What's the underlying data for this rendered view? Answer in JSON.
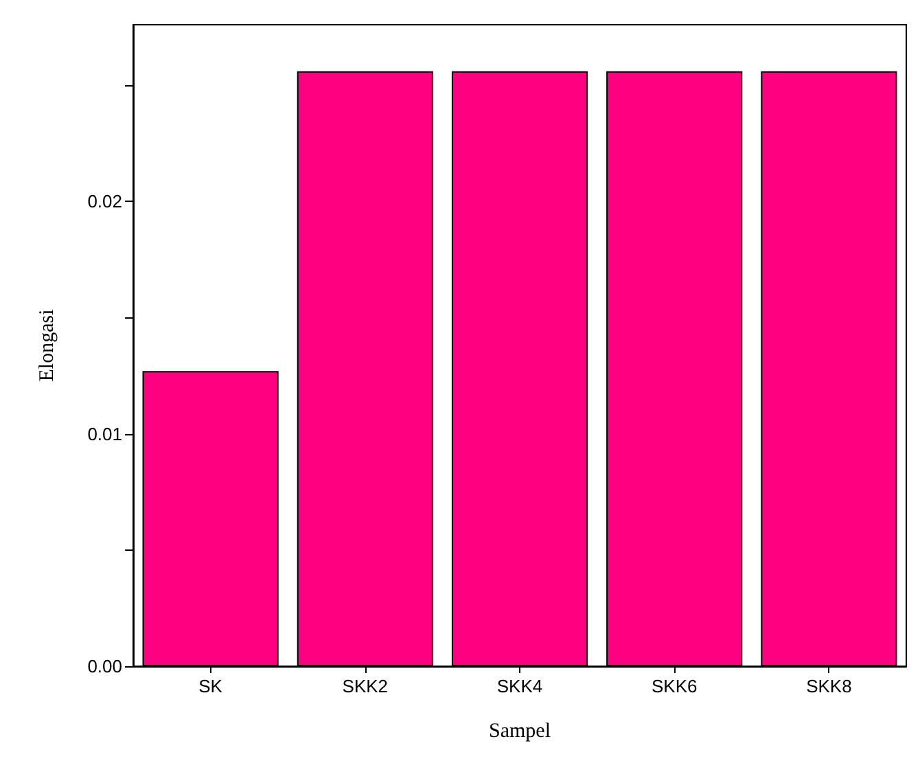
{
  "chart_data": {
    "type": "bar",
    "xlabel": "Sampel",
    "ylabel": "Elongasi",
    "categories": [
      "SK",
      "SKK2",
      "SKK4",
      "SKK6",
      "SKK8"
    ],
    "values": [
      0.0127,
      0.0256,
      0.0256,
      0.0256,
      0.0256
    ],
    "color": "#ff0080",
    "ylim": [
      0,
      0.0276
    ],
    "yticks": [
      {
        "value": 0,
        "label": "0.00"
      },
      {
        "value": 0.005,
        "label": null
      },
      {
        "value": 0.01,
        "label": "0.01"
      },
      {
        "value": 0.015,
        "label": null
      },
      {
        "value": 0.02,
        "label": "0.02"
      },
      {
        "value": 0.025,
        "label": null
      }
    ],
    "grid": false
  }
}
